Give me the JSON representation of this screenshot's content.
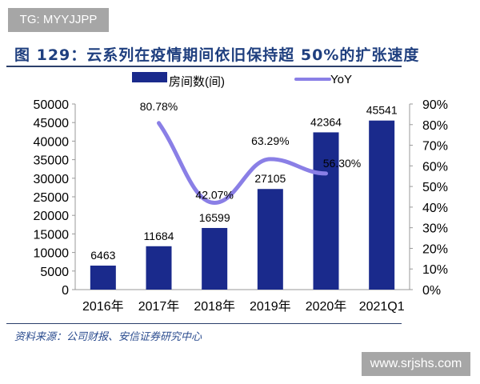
{
  "watermark_top": "TG: MYYJJPP",
  "watermark_bottom": "www.srjshs.com",
  "title": "图 129：云系列在疫情期间依旧保持超 50%的扩张速度",
  "source": "资料来源：公司财报、安信证券研究中心",
  "colors": {
    "bar": "#1a2a8c",
    "line": "#8a7fe6",
    "title": "#1f3f7f"
  },
  "chart_data": {
    "type": "bar+line",
    "categories": [
      "2016年",
      "2017年",
      "2018年",
      "2019年",
      "2020年",
      "2021Q1"
    ],
    "series": [
      {
        "name": "房间数(间)",
        "type": "bar",
        "axis": "left",
        "values": [
          6463,
          11684,
          16599,
          27105,
          42364,
          45541
        ],
        "labels": [
          "6463",
          "11684",
          "16599",
          "27105",
          "42364",
          "45541"
        ]
      },
      {
        "name": "YoY",
        "type": "line",
        "axis": "right",
        "values": [
          null,
          80.78,
          42.07,
          63.29,
          56.3,
          null
        ],
        "labels": [
          "",
          "80.78%",
          "42.07%",
          "63.29%",
          "56.30%",
          ""
        ]
      }
    ],
    "left_axis": {
      "min": 0,
      "max": 50000,
      "ticks": [
        "0",
        "5000",
        "10000",
        "15000",
        "20000",
        "25000",
        "30000",
        "35000",
        "40000",
        "45000",
        "50000"
      ]
    },
    "right_axis": {
      "min": 0,
      "max": 90,
      "ticks": [
        "0%",
        "10%",
        "20%",
        "30%",
        "40%",
        "50%",
        "60%",
        "70%",
        "80%",
        "90%"
      ]
    },
    "legend": "top"
  }
}
